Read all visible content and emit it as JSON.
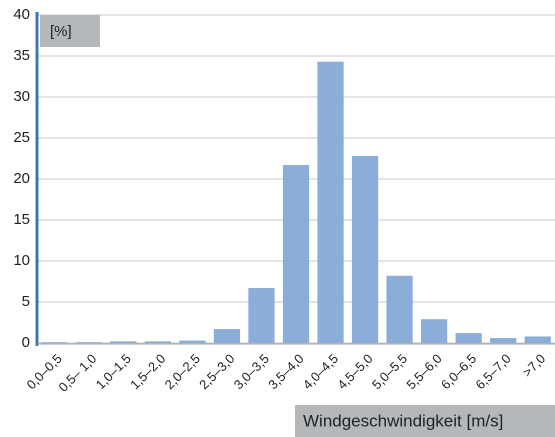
{
  "chart_data": {
    "type": "bar",
    "y_label": "[%]",
    "x_label": "Windgeschwindigkeit [m/s]",
    "categories": [
      "0,0–0,5",
      "0,5– 1,0",
      "1,0–1,5",
      "1,5–2,0",
      "2,0–2,5",
      "2,5–3,0",
      "3,0–3,5",
      "3,5–4,0",
      "4,0–4,5",
      "4,5–5,0",
      "5,0–5,5",
      "5,5–6,0",
      "6,0–6,5",
      "6,5–7,0",
      ">7,0"
    ],
    "values": [
      0.1,
      0.1,
      0.2,
      0.2,
      0.3,
      1.7,
      6.7,
      21.7,
      34.3,
      22.8,
      8.2,
      2.9,
      1.2,
      0.6,
      0.8
    ],
    "color": "#8aaed8",
    "ylim": [
      0,
      40
    ],
    "yticks": [
      0,
      5,
      10,
      15,
      20,
      25,
      30,
      35,
      40
    ],
    "grid": true
  }
}
